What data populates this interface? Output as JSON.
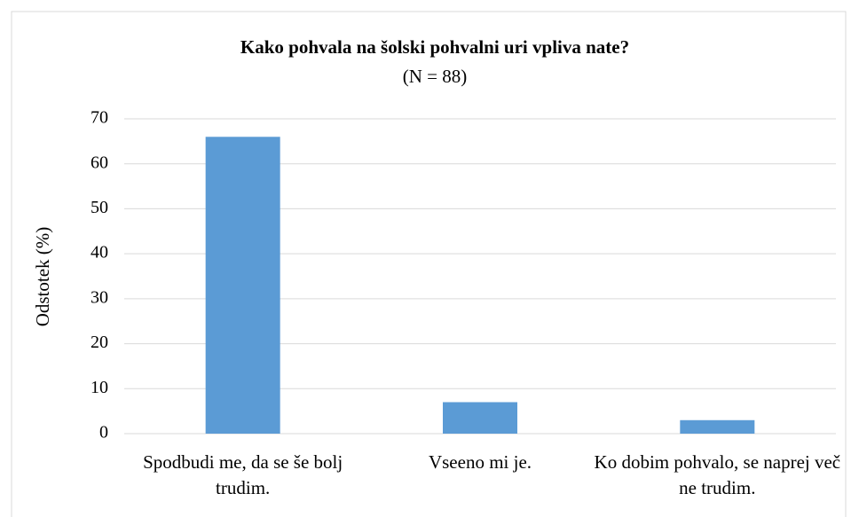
{
  "chart_data": {
    "type": "bar",
    "title": "Kako pohvala na šolski pohvalni uri vpliva nate?",
    "subtitle": "(N = 88)",
    "y_label": "Odstotek (%)",
    "categories": [
      "Spodbudi me, da se še bolj trudim.",
      "Vseeno mi je.",
      "Ko dobim pohvalo, se naprej več ne trudim."
    ],
    "values": [
      66,
      7,
      3
    ],
    "color": "#5b9bd5",
    "ylim": [
      0,
      70
    ],
    "yticks": [
      0,
      10,
      20,
      30,
      40,
      50,
      60,
      70
    ],
    "grid": true
  }
}
